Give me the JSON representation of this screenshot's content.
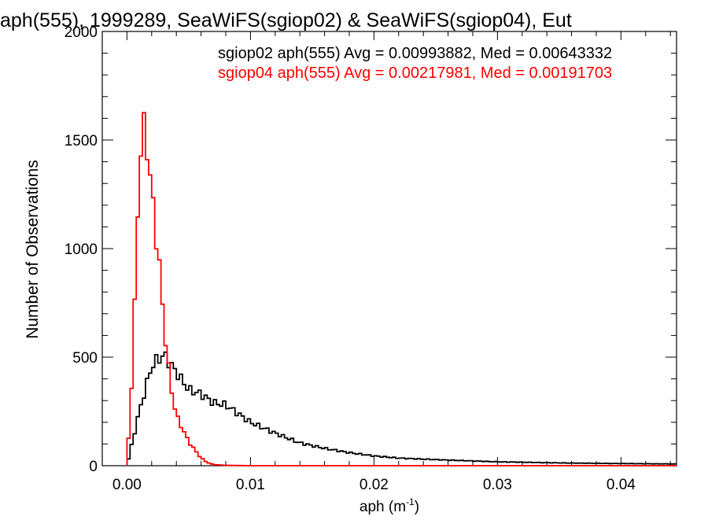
{
  "chart_data": {
    "type": "line",
    "title": "aph(555), 1999289, SeaWiFS(sgiop02) & SeaWiFS(sgiop04), Eut",
    "xlabel": "aph (m",
    "xlabel_sup": "-1",
    "xlabel_close": ")",
    "ylabel": "Number of Observations",
    "xlim": [
      -0.002,
      0.0445
    ],
    "ylim": [
      0,
      2000
    ],
    "xticks": [
      0.0,
      0.01,
      0.02,
      0.03,
      0.04
    ],
    "xtick_labels": [
      "0.00",
      "0.01",
      "0.02",
      "0.03",
      "0.04"
    ],
    "yticks": [
      0,
      500,
      1000,
      1500,
      2000
    ],
    "ytick_labels": [
      "0",
      "500",
      "1000",
      "1500",
      "2000"
    ],
    "grid": false,
    "legend_position": "top-right",
    "series": [
      {
        "name": "sgiop02",
        "annotation": "sgiop02 aph(555) Avg = 0.00993882, Med = 0.00643332",
        "color": "#000000",
        "x": [
          0.0,
          0.001,
          0.002,
          0.0025,
          0.003,
          0.004,
          0.005,
          0.006,
          0.007,
          0.008,
          0.01,
          0.012,
          0.014,
          0.016,
          0.018,
          0.02,
          0.022,
          0.025,
          0.028,
          0.03,
          0.033,
          0.036,
          0.04,
          0.0445
        ],
        "values": [
          0,
          250,
          460,
          490,
          510,
          430,
          350,
          330,
          290,
          280,
          200,
          150,
          105,
          80,
          60,
          45,
          35,
          28,
          22,
          18,
          15,
          12,
          10,
          8
        ]
      },
      {
        "name": "sgiop04",
        "annotation": "sgiop04 aph(555) Avg = 0.00217981, Med = 0.00191703",
        "color": "#ff0000",
        "x": [
          0.0,
          0.0005,
          0.001,
          0.0013,
          0.0016,
          0.002,
          0.0025,
          0.003,
          0.0035,
          0.004,
          0.005,
          0.006,
          0.0065,
          0.007,
          0.008,
          0.01,
          0.02,
          0.03,
          0.04,
          0.0445
        ],
        "values": [
          0,
          500,
          1400,
          1550,
          1500,
          1250,
          1000,
          650,
          380,
          230,
          110,
          35,
          15,
          5,
          2,
          0,
          0,
          0,
          0,
          0
        ]
      }
    ]
  }
}
